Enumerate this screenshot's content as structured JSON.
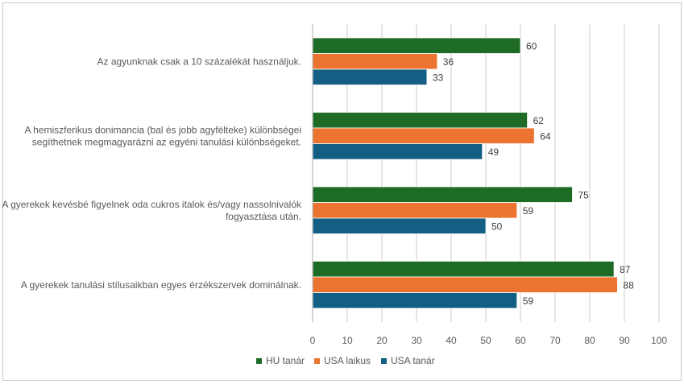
{
  "chart_data": {
    "type": "bar",
    "orientation": "horizontal",
    "categories": [
      [
        "Az agyunknak csak a 10 százalékát használjuk."
      ],
      [
        "A hemiszferikus donimancia (bal és jobb agyféltekе) különbségei",
        "segíthetnek megmagyarázni az egyéni tanulási különbségeket."
      ],
      [
        "A gyerekek kevésbé figyelnek oda cukros italok és/vagy nassolnivalók",
        "fogyasztása után."
      ],
      [
        "A gyerekek tanulási stílusaikban egyes érzékszervek dominálnak."
      ]
    ],
    "series": [
      {
        "name": "HU tanár",
        "color": "#1e6b26",
        "values": [
          60,
          62,
          75,
          87
        ]
      },
      {
        "name": "USA laikus",
        "color": "#ec7430",
        "values": [
          36,
          64,
          59,
          88
        ]
      },
      {
        "name": "USA tanár",
        "color": "#135e83",
        "values": [
          33,
          49,
          50,
          59
        ]
      }
    ],
    "xlim": [
      0,
      100
    ],
    "xticks": [
      "0",
      "10",
      "20",
      "30",
      "40",
      "50",
      "60",
      "70",
      "80",
      "90",
      "100"
    ],
    "grid": true,
    "legend_position": "bottom"
  }
}
